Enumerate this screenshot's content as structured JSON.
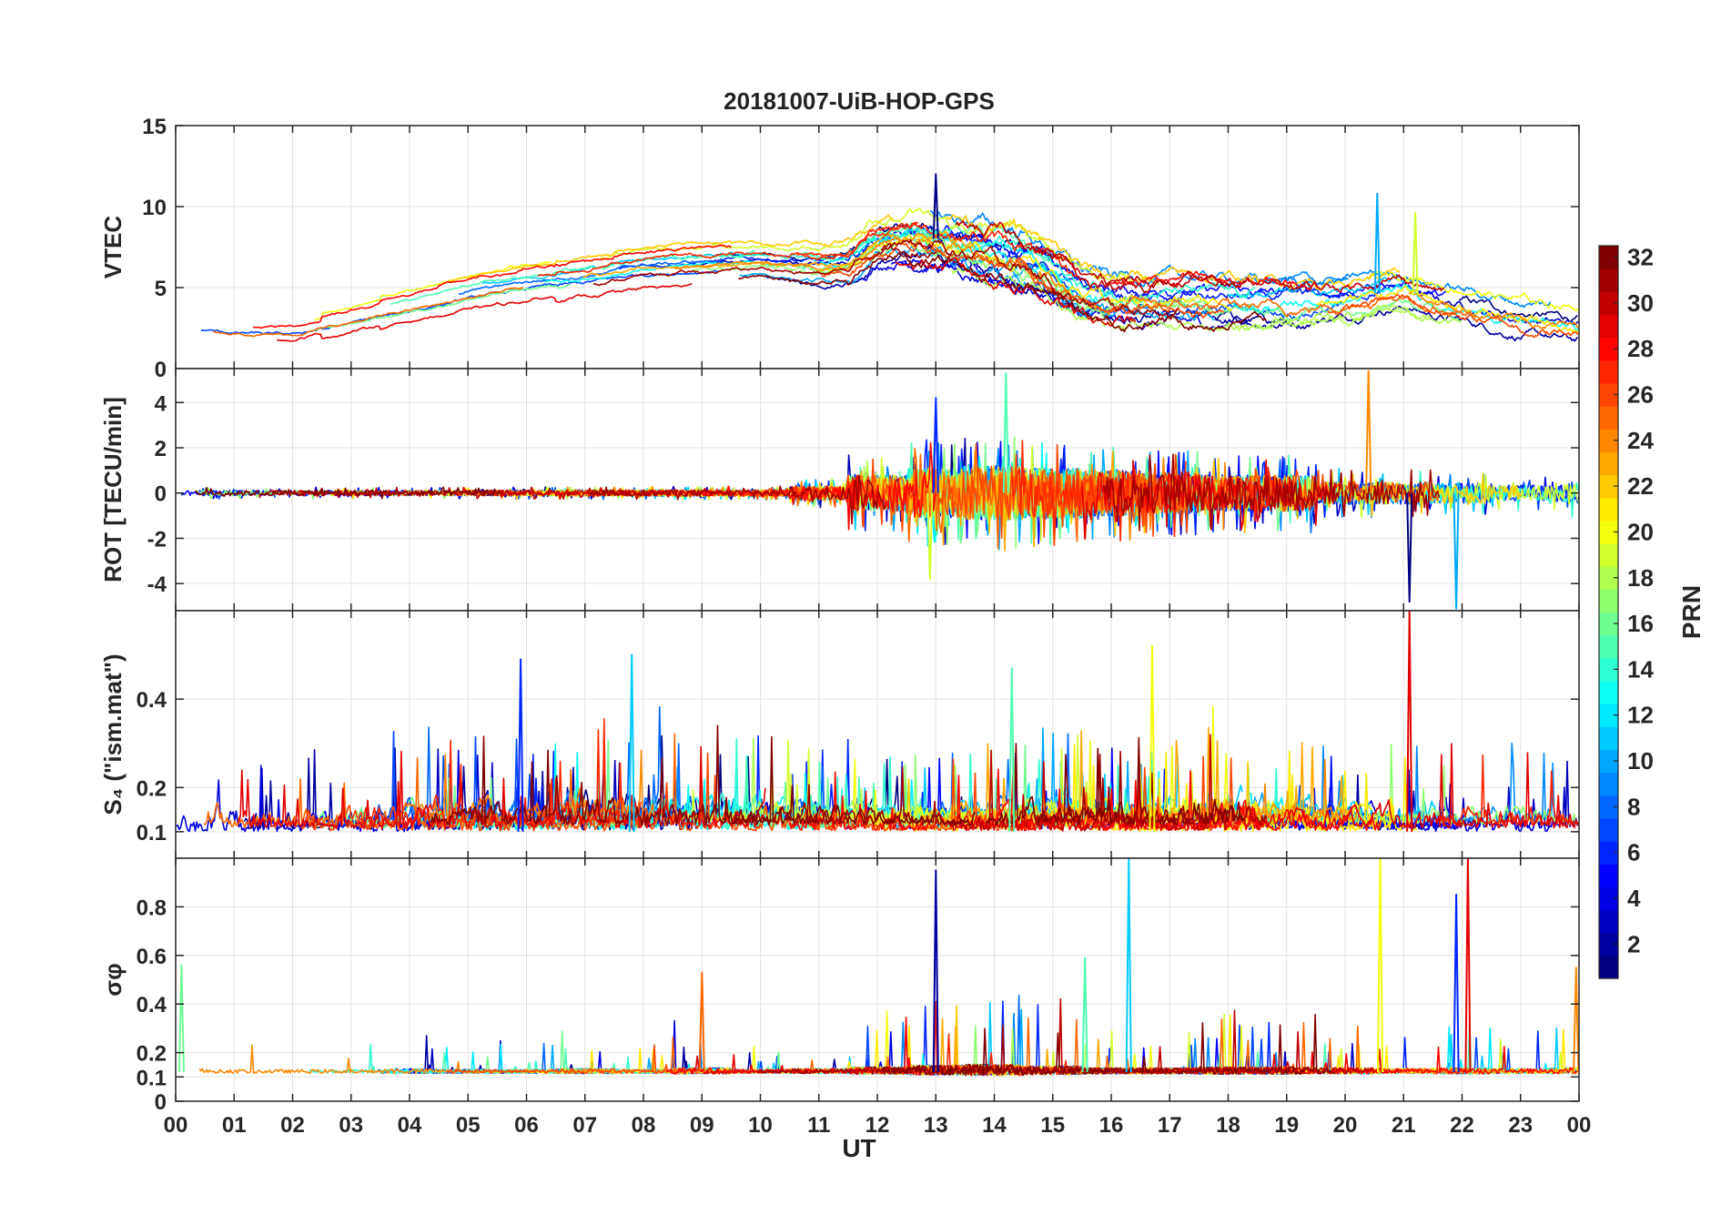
{
  "chart_data": {
    "type": "line",
    "title": "20181007-UiB-HOP-GPS",
    "xlabel": "UT",
    "x_range": [
      0,
      24
    ],
    "x_ticks": [
      {
        "value": 0,
        "label": "00"
      },
      {
        "value": 1,
        "label": "01"
      },
      {
        "value": 2,
        "label": "02"
      },
      {
        "value": 3,
        "label": "03"
      },
      {
        "value": 4,
        "label": "04"
      },
      {
        "value": 5,
        "label": "05"
      },
      {
        "value": 6,
        "label": "06"
      },
      {
        "value": 7,
        "label": "07"
      },
      {
        "value": 8,
        "label": "08"
      },
      {
        "value": 9,
        "label": "09"
      },
      {
        "value": 10,
        "label": "10"
      },
      {
        "value": 11,
        "label": "11"
      },
      {
        "value": 12,
        "label": "12"
      },
      {
        "value": 13,
        "label": "13"
      },
      {
        "value": 14,
        "label": "14"
      },
      {
        "value": 15,
        "label": "15"
      },
      {
        "value": 16,
        "label": "16"
      },
      {
        "value": 17,
        "label": "17"
      },
      {
        "value": 18,
        "label": "18"
      },
      {
        "value": 19,
        "label": "19"
      },
      {
        "value": 20,
        "label": "20"
      },
      {
        "value": 21,
        "label": "21"
      },
      {
        "value": 22,
        "label": "22"
      },
      {
        "value": 23,
        "label": "23"
      },
      {
        "value": 24,
        "label": "00"
      }
    ],
    "grid": true,
    "series_encoding": "one trace per GPS satellite, colored by PRN (1-32)",
    "panels": [
      {
        "id": "vtec",
        "ylabel": "VTEC",
        "ylim": [
          0,
          15
        ],
        "y_ticks": [
          {
            "value": 0,
            "label": "0"
          },
          {
            "value": 5,
            "label": "5"
          },
          {
            "value": 10,
            "label": "10"
          },
          {
            "value": 15,
            "label": "15"
          }
        ],
        "envelope": {
          "x": [
            0,
            1,
            2,
            3,
            4,
            5,
            6,
            7,
            8,
            9,
            10,
            11,
            11.5,
            12,
            12.5,
            13,
            13.5,
            14,
            14.5,
            15,
            15.5,
            16,
            17,
            18,
            19,
            20,
            20.5,
            21,
            21.5,
            22,
            22.5,
            23,
            24
          ],
          "y": [
            2.6,
            2.3,
            2.2,
            3.0,
            3.8,
            4.6,
            5.2,
            5.6,
            6.2,
            6.4,
            6.6,
            6.3,
            6.5,
            7.8,
            8.2,
            8.0,
            7.6,
            7.2,
            6.8,
            5.8,
            4.6,
            4.2,
            4.2,
            4.1,
            4.0,
            4.2,
            4.6,
            4.8,
            4.2,
            3.8,
            3.4,
            3.0,
            2.6
          ]
        },
        "variability": [
          0.5,
          0.4,
          0.5,
          0.8,
          1.0,
          1.1,
          1.1,
          1.3,
          1.4,
          1.4,
          1.3,
          1.5,
          1.6,
          1.7,
          1.8,
          1.7,
          1.6,
          1.6,
          1.6,
          1.5,
          1.3,
          1.2,
          1.2,
          1.2,
          1.3,
          1.3,
          1.5,
          1.6,
          1.4,
          1.2,
          0.9,
          0.6,
          0.5
        ],
        "noise": [
          0.15,
          0.15,
          0.15,
          0.15,
          0.15,
          0.15,
          0.2,
          0.2,
          0.2,
          0.2,
          0.2,
          0.3,
          0.5,
          0.7,
          0.8,
          0.7,
          0.7,
          0.6,
          0.6,
          0.6,
          0.5,
          0.5,
          0.5,
          0.5,
          0.5,
          0.5,
          0.7,
          0.7,
          0.6,
          0.5,
          0.4,
          0.3,
          0.2
        ],
        "clip": [
          0,
          15
        ],
        "notable_points": [
          {
            "x": 13.0,
            "y": 12.0
          },
          {
            "x": 20.55,
            "y": 10.8
          },
          {
            "x": 21.2,
            "y": 9.6
          }
        ]
      },
      {
        "id": "rot",
        "ylabel": "ROT [TECU/min]",
        "ylim": [
          -5.2,
          5.5
        ],
        "y_ticks": [
          {
            "value": -4,
            "label": "-4"
          },
          {
            "value": -2,
            "label": "-2"
          },
          {
            "value": 0,
            "label": "0"
          },
          {
            "value": 2,
            "label": "2"
          },
          {
            "value": 4,
            "label": "4"
          }
        ],
        "envelope": {
          "x": [
            0,
            24
          ],
          "y": [
            0,
            0
          ]
        },
        "variability": [
          0,
          0
        ],
        "noise": [
          0.12,
          0.12,
          0.12,
          0.12,
          0.12,
          0.12,
          0.13,
          0.13,
          0.13,
          0.14,
          0.14,
          0.3,
          0.8,
          1.1,
          1.2,
          1.1,
          1.0,
          0.9,
          0.8,
          0.8,
          0.5,
          0.5,
          0.45,
          0.35,
          0.5,
          0.6,
          1.0,
          1.1,
          0.9,
          0.6,
          0.4,
          0.3,
          0.3
        ],
        "clip": [
          -5.2,
          5.5
        ],
        "notable_points": [
          {
            "x": 13.0,
            "y": 4.2
          },
          {
            "x": 14.2,
            "y": 5.3
          },
          {
            "x": 20.4,
            "y": 5.4
          },
          {
            "x": 21.1,
            "y": -4.8
          },
          {
            "x": 21.9,
            "y": -5.1
          },
          {
            "x": 12.9,
            "y": -3.8
          }
        ]
      },
      {
        "id": "s4",
        "ylabel": "S₄ (\"ism.mat\")",
        "ylim": [
          0.04,
          0.6
        ],
        "y_ticks": [
          {
            "value": 0.1,
            "label": "0.1"
          },
          {
            "value": 0.2,
            "label": "0.2"
          },
          {
            "value": 0.4,
            "label": "0.4"
          }
        ],
        "envelope": {
          "x": [
            0,
            24
          ],
          "y": [
            0.1,
            0.1
          ]
        },
        "variability": [
          0.04,
          0.04
        ],
        "noise": [
          0.06,
          0.08,
          0.06,
          0.06,
          0.07,
          0.07,
          0.06,
          0.08,
          0.08,
          0.07,
          0.07,
          0.06,
          0.05,
          0.05,
          0.06,
          0.07,
          0.06,
          0.06,
          0.08,
          0.06,
          0.06,
          0.06,
          0.06,
          0.06,
          0.06,
          0.08,
          0.08,
          0.1,
          0.08,
          0.07,
          0.07,
          0.06,
          0.05
        ],
        "clip": [
          0.045,
          0.59
        ],
        "notable_points": [
          {
            "x": 7.8,
            "y": 0.5
          },
          {
            "x": 16.7,
            "y": 0.52
          },
          {
            "x": 21.1,
            "y": 0.6
          },
          {
            "x": 5.9,
            "y": 0.49
          },
          {
            "x": 14.3,
            "y": 0.47
          }
        ]
      },
      {
        "id": "sigma",
        "ylabel": "σφ",
        "ylim": [
          0,
          1.0
        ],
        "y_ticks": [
          {
            "value": 0,
            "label": "0"
          },
          {
            "value": 0.1,
            "label": "0.1"
          },
          {
            "value": 0.2,
            "label": "0.2"
          },
          {
            "value": 0.4,
            "label": "0.4"
          },
          {
            "value": 0.6,
            "label": "0.6"
          },
          {
            "value": 0.8,
            "label": "0.8"
          }
        ],
        "envelope": {
          "x": [
            0,
            24
          ],
          "y": [
            0.12,
            0.12
          ]
        },
        "variability": [
          0.02,
          0.02
        ],
        "noise": [
          0.05,
          0.03,
          0.03,
          0.03,
          0.04,
          0.03,
          0.03,
          0.04,
          0.03,
          0.05,
          0.03,
          0.04,
          0.06,
          0.08,
          0.09,
          0.07,
          0.05,
          0.05,
          0.06,
          0.06,
          0.05,
          0.04,
          0.05,
          0.04,
          0.05,
          0.05,
          0.06,
          0.07,
          0.06,
          0.05,
          0.04,
          0.04,
          0.05
        ],
        "clip": [
          0.06,
          1.0
        ],
        "notable_points": [
          {
            "x": 0.1,
            "y": 0.56
          },
          {
            "x": 9.0,
            "y": 0.53
          },
          {
            "x": 13.0,
            "y": 0.95
          },
          {
            "x": 16.3,
            "y": 1.0
          },
          {
            "x": 20.6,
            "y": 1.0
          },
          {
            "x": 22.1,
            "y": 1.0
          },
          {
            "x": 21.9,
            "y": 0.85
          },
          {
            "x": 15.55,
            "y": 0.59
          },
          {
            "x": 23.95,
            "y": 0.55
          }
        ]
      }
    ],
    "colorbar": {
      "label": "PRN",
      "range": [
        1,
        32
      ],
      "ticks": [
        2,
        4,
        6,
        8,
        10,
        12,
        14,
        16,
        18,
        20,
        22,
        24,
        26,
        28,
        30,
        32
      ],
      "colormap": "jet"
    }
  }
}
